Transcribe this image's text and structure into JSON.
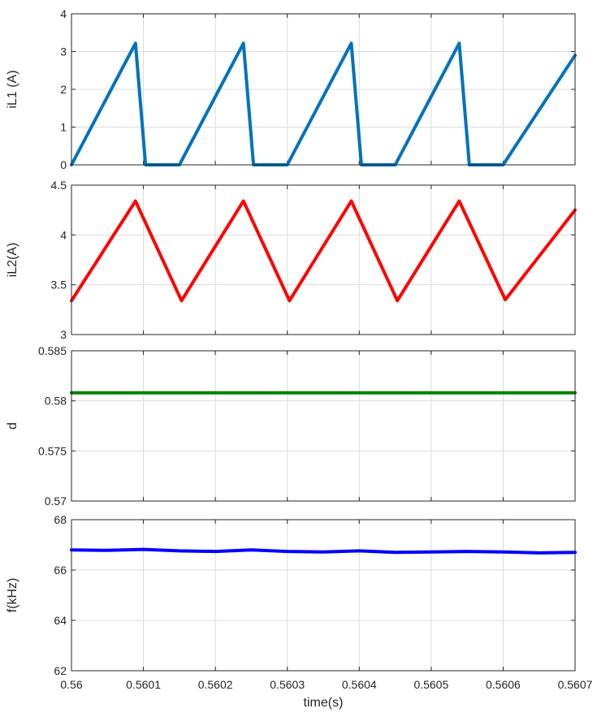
{
  "chart_data": [
    {
      "type": "line",
      "ylabel": "iL1 (A)",
      "xlim": [
        0.56,
        0.5607
      ],
      "ylim": [
        0,
        4
      ],
      "yticks": [
        "0",
        "1",
        "2",
        "3",
        "4"
      ],
      "grid": true,
      "series": [
        {
          "color": "#0072BD",
          "x": [
            0.56,
            0.560089,
            0.560103,
            0.560115,
            0.56015,
            0.560239,
            0.560253,
            0.560265,
            0.5603,
            0.560389,
            0.560403,
            0.560415,
            0.56045,
            0.560539,
            0.560553,
            0.560565,
            0.5606,
            0.5607
          ],
          "y": [
            0.0,
            3.22,
            0.0,
            0.0,
            0.0,
            3.22,
            0.0,
            0.0,
            0.0,
            3.22,
            0.0,
            0.0,
            0.0,
            3.22,
            0.0,
            0.0,
            0.0,
            2.9
          ]
        }
      ]
    },
    {
      "type": "line",
      "ylabel": "iL2(A)",
      "xlim": [
        0.56,
        0.5607
      ],
      "ylim": [
        3,
        4.5
      ],
      "yticks": [
        "3",
        "3.5",
        "4",
        "4.5"
      ],
      "grid": true,
      "series": [
        {
          "color": "#FF0000",
          "x": [
            0.56,
            0.560089,
            0.560153,
            0.560239,
            0.560303,
            0.560389,
            0.560453,
            0.560539,
            0.560603,
            0.5607
          ],
          "y": [
            3.34,
            4.34,
            3.34,
            4.34,
            3.34,
            4.34,
            3.34,
            4.34,
            3.35,
            4.25
          ]
        }
      ]
    },
    {
      "type": "line",
      "ylabel": "d",
      "xlim": [
        0.56,
        0.5607
      ],
      "ylim": [
        0.57,
        0.585
      ],
      "yticks": [
        "0.57",
        "0.575",
        "0.58",
        "0.585"
      ],
      "grid": true,
      "series": [
        {
          "color": "#008000",
          "x": [
            0.56,
            0.5601,
            0.5602,
            0.5603,
            0.5604,
            0.5605,
            0.5606,
            0.5607
          ],
          "y": [
            0.5808,
            0.5808,
            0.5808,
            0.5808,
            0.5808,
            0.5808,
            0.5808,
            0.5808
          ]
        }
      ]
    },
    {
      "type": "line",
      "ylabel": "f(kHz)",
      "xlabel": "time(s)",
      "xlim": [
        0.56,
        0.5607
      ],
      "ylim": [
        62,
        68
      ],
      "yticks": [
        "62",
        "64",
        "66",
        "68"
      ],
      "xticks": [
        "0.56",
        "0.5601",
        "0.5602",
        "0.5603",
        "0.5604",
        "0.5605",
        "0.5606",
        "0.5607"
      ],
      "grid": true,
      "series": [
        {
          "color": "#0000FF",
          "x": [
            0.56,
            0.56005,
            0.5601,
            0.56015,
            0.5602,
            0.56025,
            0.5603,
            0.56035,
            0.5604,
            0.56045,
            0.5605,
            0.56055,
            0.5606,
            0.56065,
            0.5607
          ],
          "y": [
            66.8,
            66.78,
            66.82,
            66.76,
            66.74,
            66.8,
            66.74,
            66.72,
            66.76,
            66.7,
            66.72,
            66.74,
            66.72,
            66.68,
            66.7
          ]
        }
      ]
    }
  ]
}
